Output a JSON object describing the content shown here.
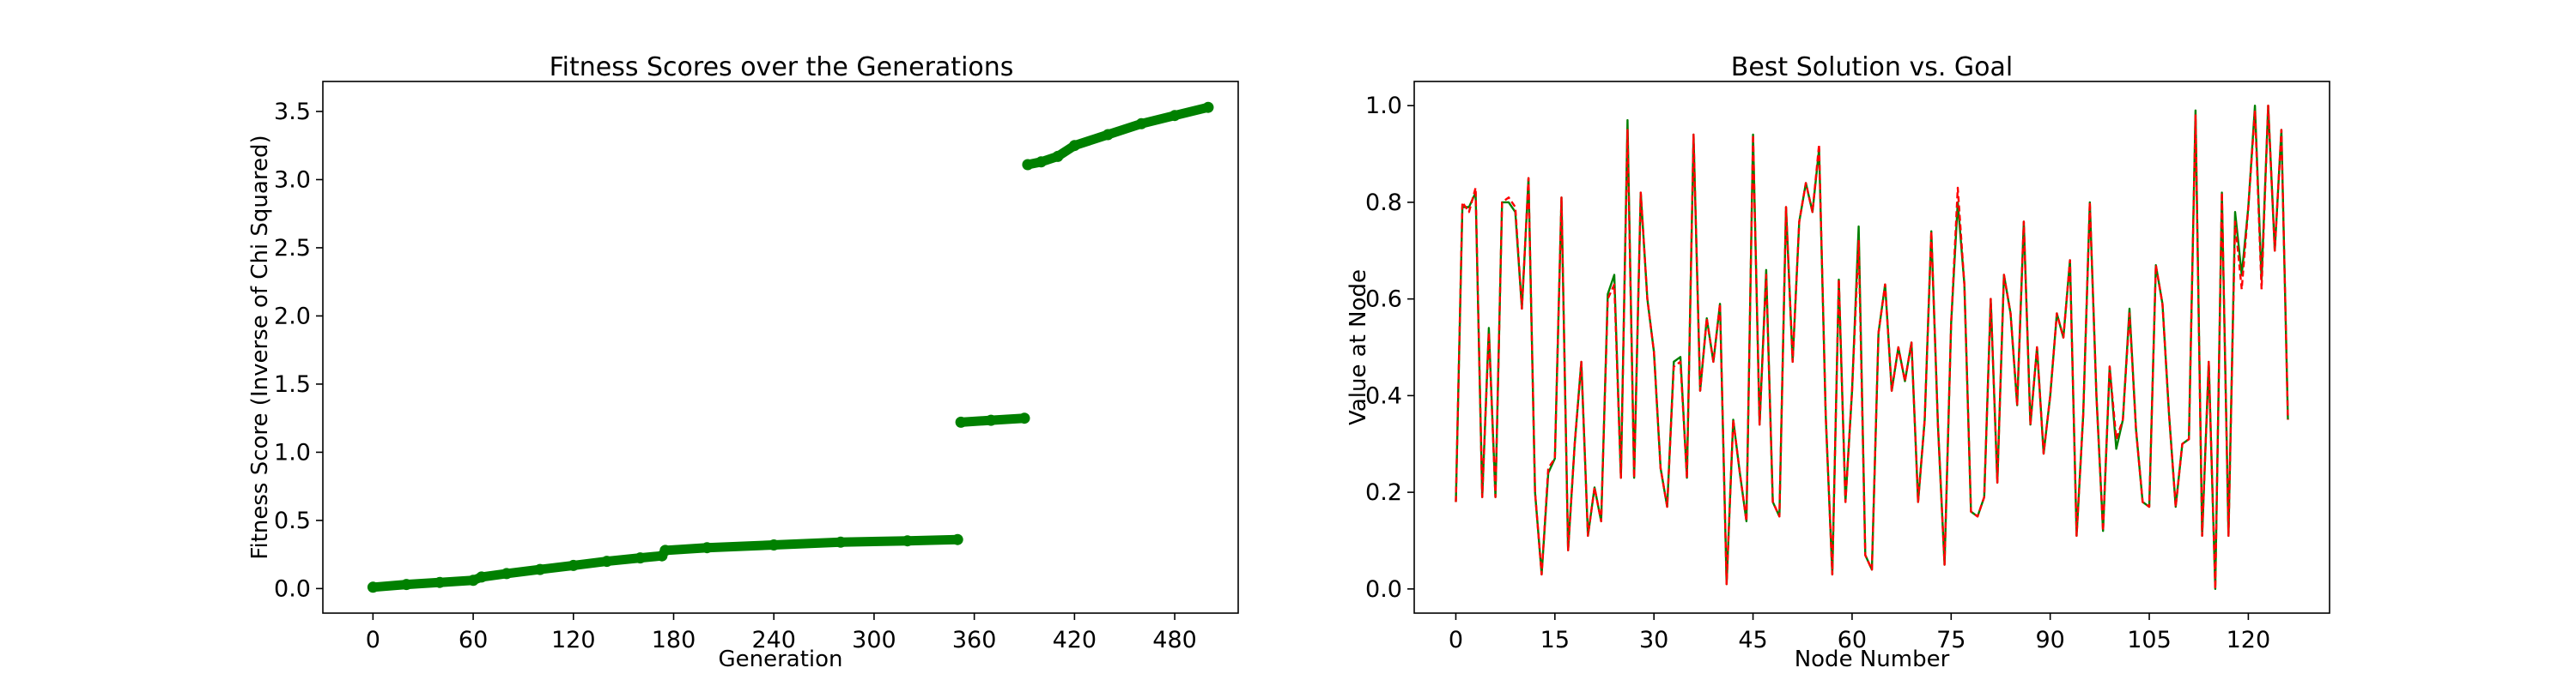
{
  "chart_data": [
    {
      "type": "scatter",
      "title": "Fitness Scores over the Generations",
      "xlabel": "Generation",
      "ylabel": "Fitness Score (Inverse of Chi Squared)",
      "xlim": [
        -30,
        518
      ],
      "ylim": [
        -0.18,
        3.72
      ],
      "xticks": [
        0,
        60,
        120,
        180,
        240,
        300,
        360,
        420,
        480
      ],
      "yticks": [
        0.0,
        0.5,
        1.0,
        1.5,
        2.0,
        2.5,
        3.0,
        3.5
      ],
      "ytick_labels": [
        "0.0",
        "0.5",
        "1.0",
        "1.5",
        "2.0",
        "2.5",
        "3.0",
        "3.5"
      ],
      "grid": false,
      "color": "#008000",
      "series": [
        {
          "x": [
            0,
            20,
            40,
            60,
            65,
            80,
            100,
            120,
            140,
            160,
            173,
            175,
            200,
            240,
            280,
            320,
            350,
            352,
            370,
            390,
            392,
            400,
            410,
            420,
            440,
            460,
            480,
            500
          ],
          "y": [
            0.01,
            0.03,
            0.045,
            0.06,
            0.085,
            0.11,
            0.14,
            0.17,
            0.2,
            0.225,
            0.24,
            0.28,
            0.3,
            0.32,
            0.34,
            0.35,
            0.36,
            1.22,
            1.235,
            1.25,
            3.11,
            3.13,
            3.17,
            3.25,
            3.33,
            3.41,
            3.47,
            3.53
          ]
        }
      ]
    },
    {
      "type": "line",
      "title": "Best Solution vs. Goal",
      "xlabel": "Node Number",
      "ylabel": "Value at Node",
      "xlim": [
        -6.3,
        132.3
      ],
      "ylim": [
        -0.05,
        1.05
      ],
      "xticks": [
        0,
        15,
        30,
        45,
        60,
        75,
        90,
        105,
        120
      ],
      "yticks": [
        0.0,
        0.2,
        0.4,
        0.6,
        0.8,
        1.0
      ],
      "ytick_labels": [
        "0.0",
        "0.2",
        "0.4",
        "0.6",
        "0.8",
        "1.0"
      ],
      "grid": false,
      "series": [
        {
          "color": "#008000",
          "style": "solid",
          "values": [
            0.18,
            0.79,
            0.79,
            0.82,
            0.19,
            0.54,
            0.19,
            0.8,
            0.8,
            0.78,
            0.58,
            0.85,
            0.2,
            0.03,
            0.24,
            0.27,
            0.81,
            0.08,
            0.3,
            0.47,
            0.11,
            0.21,
            0.14,
            0.61,
            0.65,
            0.23,
            0.97,
            0.23,
            0.82,
            0.6,
            0.49,
            0.25,
            0.17,
            0.47,
            0.48,
            0.23,
            0.94,
            0.41,
            0.56,
            0.47,
            0.59,
            0.01,
            0.35,
            0.24,
            0.14,
            0.94,
            0.34,
            0.66,
            0.18,
            0.15,
            0.79,
            0.47,
            0.76,
            0.84,
            0.78,
            0.91,
            0.36,
            0.03,
            0.64,
            0.18,
            0.41,
            0.75,
            0.07,
            0.04,
            0.53,
            0.63,
            0.41,
            0.5,
            0.43,
            0.51,
            0.18,
            0.35,
            0.74,
            0.34,
            0.05,
            0.55,
            0.8,
            0.63,
            0.16,
            0.15,
            0.19,
            0.6,
            0.22,
            0.65,
            0.57,
            0.38,
            0.76,
            0.34,
            0.5,
            0.28,
            0.4,
            0.57,
            0.52,
            0.68,
            0.11,
            0.36,
            0.8,
            0.4,
            0.12,
            0.46,
            0.29,
            0.35,
            0.58,
            0.33,
            0.18,
            0.17,
            0.67,
            0.59,
            0.36,
            0.17,
            0.3,
            0.31,
            0.99,
            0.11,
            0.47,
            0.0,
            0.82,
            0.11,
            0.78,
            0.65,
            0.79,
            1.0,
            0.64,
            1.0,
            0.7,
            0.95,
            0.35
          ]
        },
        {
          "color": "#ff0000",
          "style": "dashed",
          "values": [
            0.18,
            0.8,
            0.78,
            0.83,
            0.19,
            0.53,
            0.19,
            0.8,
            0.81,
            0.79,
            0.58,
            0.85,
            0.2,
            0.03,
            0.25,
            0.27,
            0.81,
            0.08,
            0.3,
            0.47,
            0.11,
            0.21,
            0.14,
            0.6,
            0.63,
            0.23,
            0.95,
            0.23,
            0.82,
            0.6,
            0.49,
            0.25,
            0.17,
            0.46,
            0.47,
            0.23,
            0.94,
            0.41,
            0.56,
            0.47,
            0.59,
            0.01,
            0.35,
            0.24,
            0.14,
            0.94,
            0.34,
            0.65,
            0.18,
            0.15,
            0.79,
            0.47,
            0.76,
            0.84,
            0.78,
            0.92,
            0.36,
            0.03,
            0.64,
            0.18,
            0.41,
            0.72,
            0.07,
            0.04,
            0.53,
            0.63,
            0.41,
            0.5,
            0.43,
            0.51,
            0.18,
            0.35,
            0.74,
            0.34,
            0.05,
            0.55,
            0.83,
            0.63,
            0.16,
            0.15,
            0.19,
            0.6,
            0.22,
            0.65,
            0.57,
            0.38,
            0.76,
            0.34,
            0.5,
            0.28,
            0.4,
            0.57,
            0.52,
            0.68,
            0.11,
            0.36,
            0.8,
            0.4,
            0.12,
            0.46,
            0.31,
            0.35,
            0.57,
            0.33,
            0.18,
            0.17,
            0.67,
            0.59,
            0.36,
            0.17,
            0.3,
            0.31,
            0.98,
            0.11,
            0.47,
            0.0,
            0.82,
            0.11,
            0.76,
            0.62,
            0.79,
            0.99,
            0.62,
            1.0,
            0.7,
            0.95,
            0.35
          ]
        }
      ]
    }
  ]
}
